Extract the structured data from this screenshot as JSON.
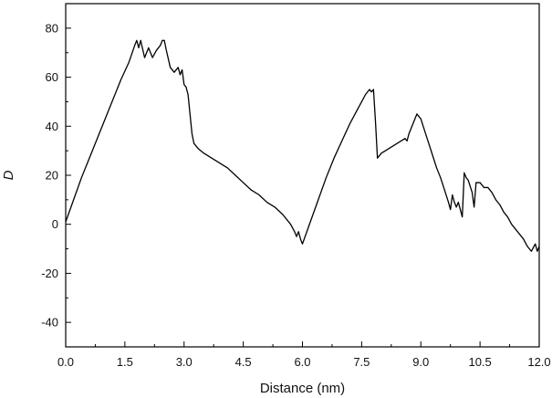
{
  "chart_data": {
    "type": "line",
    "title": "",
    "xlabel": "Distance (nm)",
    "ylabel": "D",
    "xlim": [
      0.0,
      12.0
    ],
    "ylim": [
      -50,
      90
    ],
    "x_ticks": [
      0.0,
      1.5,
      3.0,
      4.5,
      6.0,
      7.5,
      9.0,
      10.5,
      12.0
    ],
    "x_tick_labels": [
      "0.0",
      "1.5",
      "3.0",
      "4.5",
      "6.0",
      "7.5",
      "9.0",
      "10.5",
      "12.0"
    ],
    "y_ticks": [
      -40,
      -20,
      0,
      20,
      40,
      60,
      80
    ],
    "y_tick_labels": [
      "-40",
      "-20",
      "0",
      "20",
      "40",
      "60",
      "80"
    ],
    "grid": false,
    "legend": "none",
    "line_color": "#000000",
    "series": [
      {
        "x": [
          0.0,
          0.2,
          0.4,
          0.6,
          0.8,
          1.0,
          1.2,
          1.4,
          1.6,
          1.75,
          1.8,
          1.85,
          1.9,
          2.0,
          2.1,
          2.2,
          2.3,
          2.4,
          2.45,
          2.5,
          2.55,
          2.65,
          2.75,
          2.85,
          2.9,
          2.95,
          3.0,
          3.05,
          3.1,
          3.15,
          3.2,
          3.25,
          3.35,
          3.5,
          3.7,
          3.9,
          4.1,
          4.3,
          4.5,
          4.7,
          4.9,
          5.1,
          5.3,
          5.5,
          5.7,
          5.8,
          5.85,
          5.9,
          5.95,
          6.0,
          6.2,
          6.4,
          6.6,
          6.8,
          7.0,
          7.2,
          7.4,
          7.5,
          7.6,
          7.7,
          7.75,
          7.8,
          7.85,
          7.9,
          8.0,
          8.1,
          8.2,
          8.4,
          8.6,
          8.65,
          8.7,
          8.8,
          8.9,
          8.95,
          9.0,
          9.1,
          9.2,
          9.3,
          9.4,
          9.5,
          9.6,
          9.7,
          9.75,
          9.8,
          9.85,
          9.9,
          9.95,
          10.0,
          10.05,
          10.1,
          10.15,
          10.2,
          10.3,
          10.35,
          10.4,
          10.5,
          10.6,
          10.7,
          10.8,
          10.9,
          11.0,
          11.1,
          11.2,
          11.3,
          11.4,
          11.5,
          11.6,
          11.7,
          11.8,
          11.9,
          11.95,
          12.0
        ],
        "y": [
          1,
          10,
          19,
          27,
          35,
          43,
          51,
          59,
          66,
          73,
          75,
          72,
          75,
          68,
          72,
          68,
          71,
          73,
          75,
          75,
          71,
          64,
          62,
          64,
          61,
          63,
          57,
          56,
          53,
          45,
          37,
          33,
          31,
          29,
          27,
          25,
          23,
          20,
          17,
          14,
          12,
          9,
          7,
          4,
          0,
          -3,
          -5,
          -3,
          -6,
          -8,
          1,
          10,
          19,
          27,
          34,
          41,
          47,
          50,
          53,
          55,
          54,
          55,
          42,
          27,
          29,
          30,
          31,
          33,
          35,
          34,
          37,
          41,
          45,
          44,
          43,
          38,
          33,
          28,
          23,
          19,
          14,
          9,
          6,
          12,
          9,
          7,
          9,
          6,
          3,
          21,
          19,
          18,
          13,
          7,
          17,
          17,
          15,
          15,
          13,
          10,
          8,
          5,
          3,
          0,
          -2,
          -4,
          -6,
          -9,
          -11,
          -8,
          -11,
          -9
        ]
      }
    ]
  }
}
